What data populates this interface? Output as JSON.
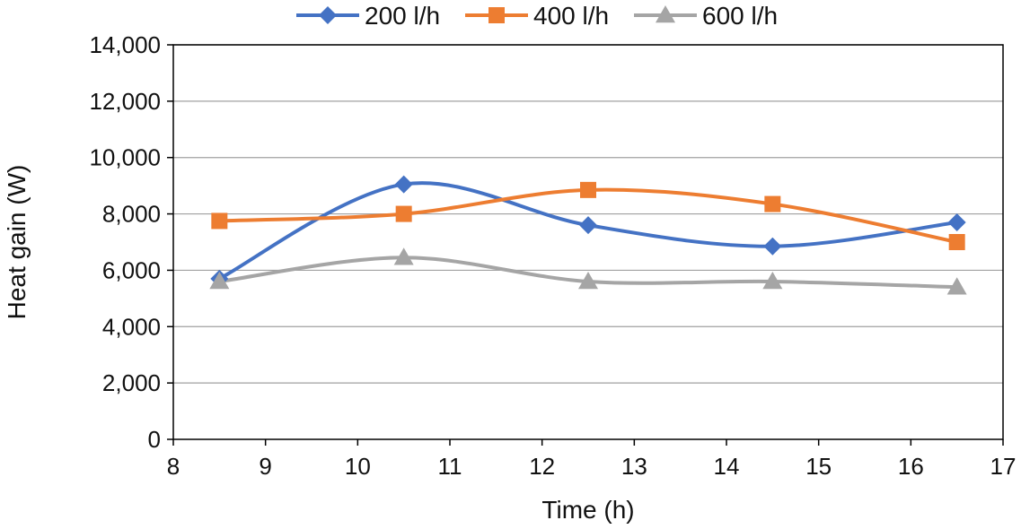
{
  "chart_data": {
    "type": "line",
    "xlabel": "Time (h)",
    "ylabel": "Heat gain (W)",
    "xlim": [
      8,
      17
    ],
    "ylim": [
      0,
      14000
    ],
    "x_ticks": [
      8,
      9,
      10,
      11,
      12,
      13,
      14,
      15,
      16,
      17
    ],
    "y_ticks": [
      0,
      2000,
      4000,
      6000,
      8000,
      10000,
      12000,
      14000
    ],
    "x_tick_labels": [
      "8",
      "9",
      "10",
      "11",
      "12",
      "13",
      "14",
      "15",
      "16",
      "17"
    ],
    "y_tick_labels": [
      "0",
      "2,000",
      "4,000",
      "6,000",
      "8,000",
      "10,000",
      "12,000",
      "14,000"
    ],
    "grid": "horizontal",
    "legend_position": "top",
    "x": [
      8.5,
      10.5,
      12.5,
      14.5,
      16.5
    ],
    "series": [
      {
        "name": "200 l/h",
        "color": "#4472C4",
        "marker": "diamond",
        "values": [
          5700,
          9050,
          7600,
          6850,
          7700
        ]
      },
      {
        "name": "400 l/h",
        "color": "#ED7D31",
        "marker": "square",
        "values": [
          7750,
          8000,
          8850,
          8350,
          7000
        ]
      },
      {
        "name": "600 l/h",
        "color": "#A5A5A5",
        "marker": "triangle",
        "values": [
          5600,
          6450,
          5600,
          5600,
          5400
        ]
      }
    ]
  }
}
